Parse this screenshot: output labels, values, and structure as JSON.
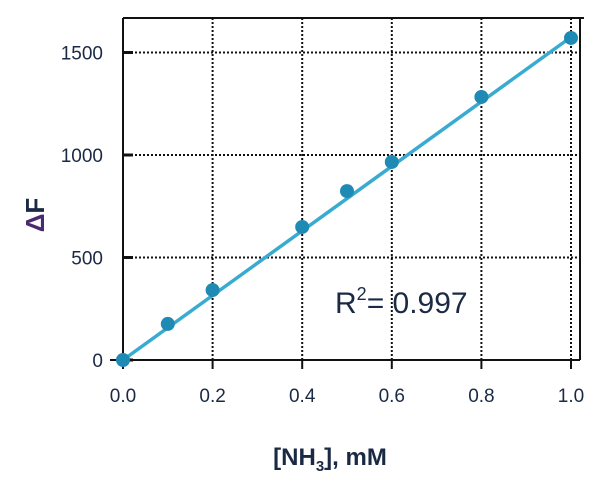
{
  "chart_data": {
    "type": "scatter",
    "title": "",
    "xlabel_main": "[NH",
    "xlabel_sub": "3",
    "xlabel_rest": "], mM",
    "ylabel_delta": "Δ",
    "ylabel_letter": "F",
    "xlim": [
      0,
      1.0
    ],
    "ylim": [
      0,
      1650
    ],
    "xticks": [
      0.0,
      0.2,
      0.4,
      0.6,
      0.8,
      1.0
    ],
    "xtick_labels": [
      "0.0",
      "0.2",
      "0.4",
      "0.6",
      "0.8",
      "1.0"
    ],
    "yticks": [
      0,
      500,
      1000,
      1500
    ],
    "ytick_labels": [
      "0",
      "500",
      "1000",
      "1500"
    ],
    "grid": "dotted",
    "points": [
      {
        "x": 0.0,
        "y": 0
      },
      {
        "x": 0.1,
        "y": 176
      },
      {
        "x": 0.2,
        "y": 341
      },
      {
        "x": 0.4,
        "y": 649
      },
      {
        "x": 0.5,
        "y": 824
      },
      {
        "x": 0.6,
        "y": 966
      },
      {
        "x": 0.8,
        "y": 1283
      },
      {
        "x": 1.0,
        "y": 1571
      }
    ],
    "fit_line": {
      "x": [
        0.0,
        1.0
      ],
      "y": [
        0,
        1575
      ]
    },
    "annotation": {
      "prefix": "R",
      "sup": "2",
      "text": "= 0.997"
    },
    "colors": {
      "points": "#1f8ab3",
      "line": "#3aabd0",
      "text": "#1b2a44",
      "delta": "#4a2a6e"
    }
  }
}
